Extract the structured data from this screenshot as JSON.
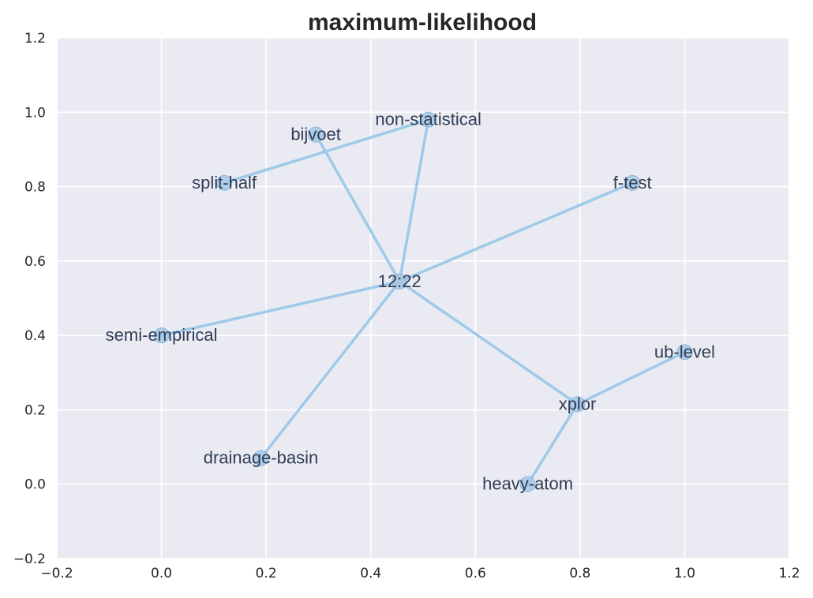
{
  "chart_data": {
    "type": "network",
    "title": "maximum-likelihood",
    "xlabel": "",
    "ylabel": "",
    "xlim": [
      -0.2,
      1.2
    ],
    "ylim": [
      -0.2,
      1.2
    ],
    "xticks": [
      "−0.2",
      "0.0",
      "0.2",
      "0.4",
      "0.6",
      "0.8",
      "1.0",
      "1.2"
    ],
    "yticks": [
      "−0.2",
      "0.0",
      "0.2",
      "0.4",
      "0.6",
      "0.8",
      "1.0",
      "1.2"
    ],
    "grid": true,
    "nodes": [
      {
        "label": "12:22",
        "x": 0.455,
        "y": 0.545
      },
      {
        "label": "non-statistical",
        "x": 0.51,
        "y": 0.98
      },
      {
        "label": "bijvoet",
        "x": 0.295,
        "y": 0.94
      },
      {
        "label": "split-half",
        "x": 0.12,
        "y": 0.81
      },
      {
        "label": "f-test",
        "x": 0.9,
        "y": 0.81
      },
      {
        "label": "semi-empirical",
        "x": 0.0,
        "y": 0.4
      },
      {
        "label": "ub-level",
        "x": 1.0,
        "y": 0.355
      },
      {
        "label": "xplor",
        "x": 0.795,
        "y": 0.215
      },
      {
        "label": "drainage-basin",
        "x": 0.19,
        "y": 0.07
      },
      {
        "label": "heavy-atom",
        "x": 0.7,
        "y": 0.0
      }
    ],
    "edges": [
      [
        "12:22",
        "non-statistical"
      ],
      [
        "12:22",
        "bijvoet"
      ],
      [
        "12:22",
        "f-test"
      ],
      [
        "12:22",
        "semi-empirical"
      ],
      [
        "12:22",
        "drainage-basin"
      ],
      [
        "12:22",
        "xplor"
      ],
      [
        "non-statistical",
        "split-half"
      ],
      [
        "xplor",
        "ub-level"
      ],
      [
        "xplor",
        "heavy-atom"
      ]
    ],
    "colors": {
      "background": "#eaeaf2",
      "grid": "#ffffff",
      "edge": "#9ecae9",
      "node": "#a6c8e6",
      "node_stroke": "#8fb6dc"
    }
  }
}
